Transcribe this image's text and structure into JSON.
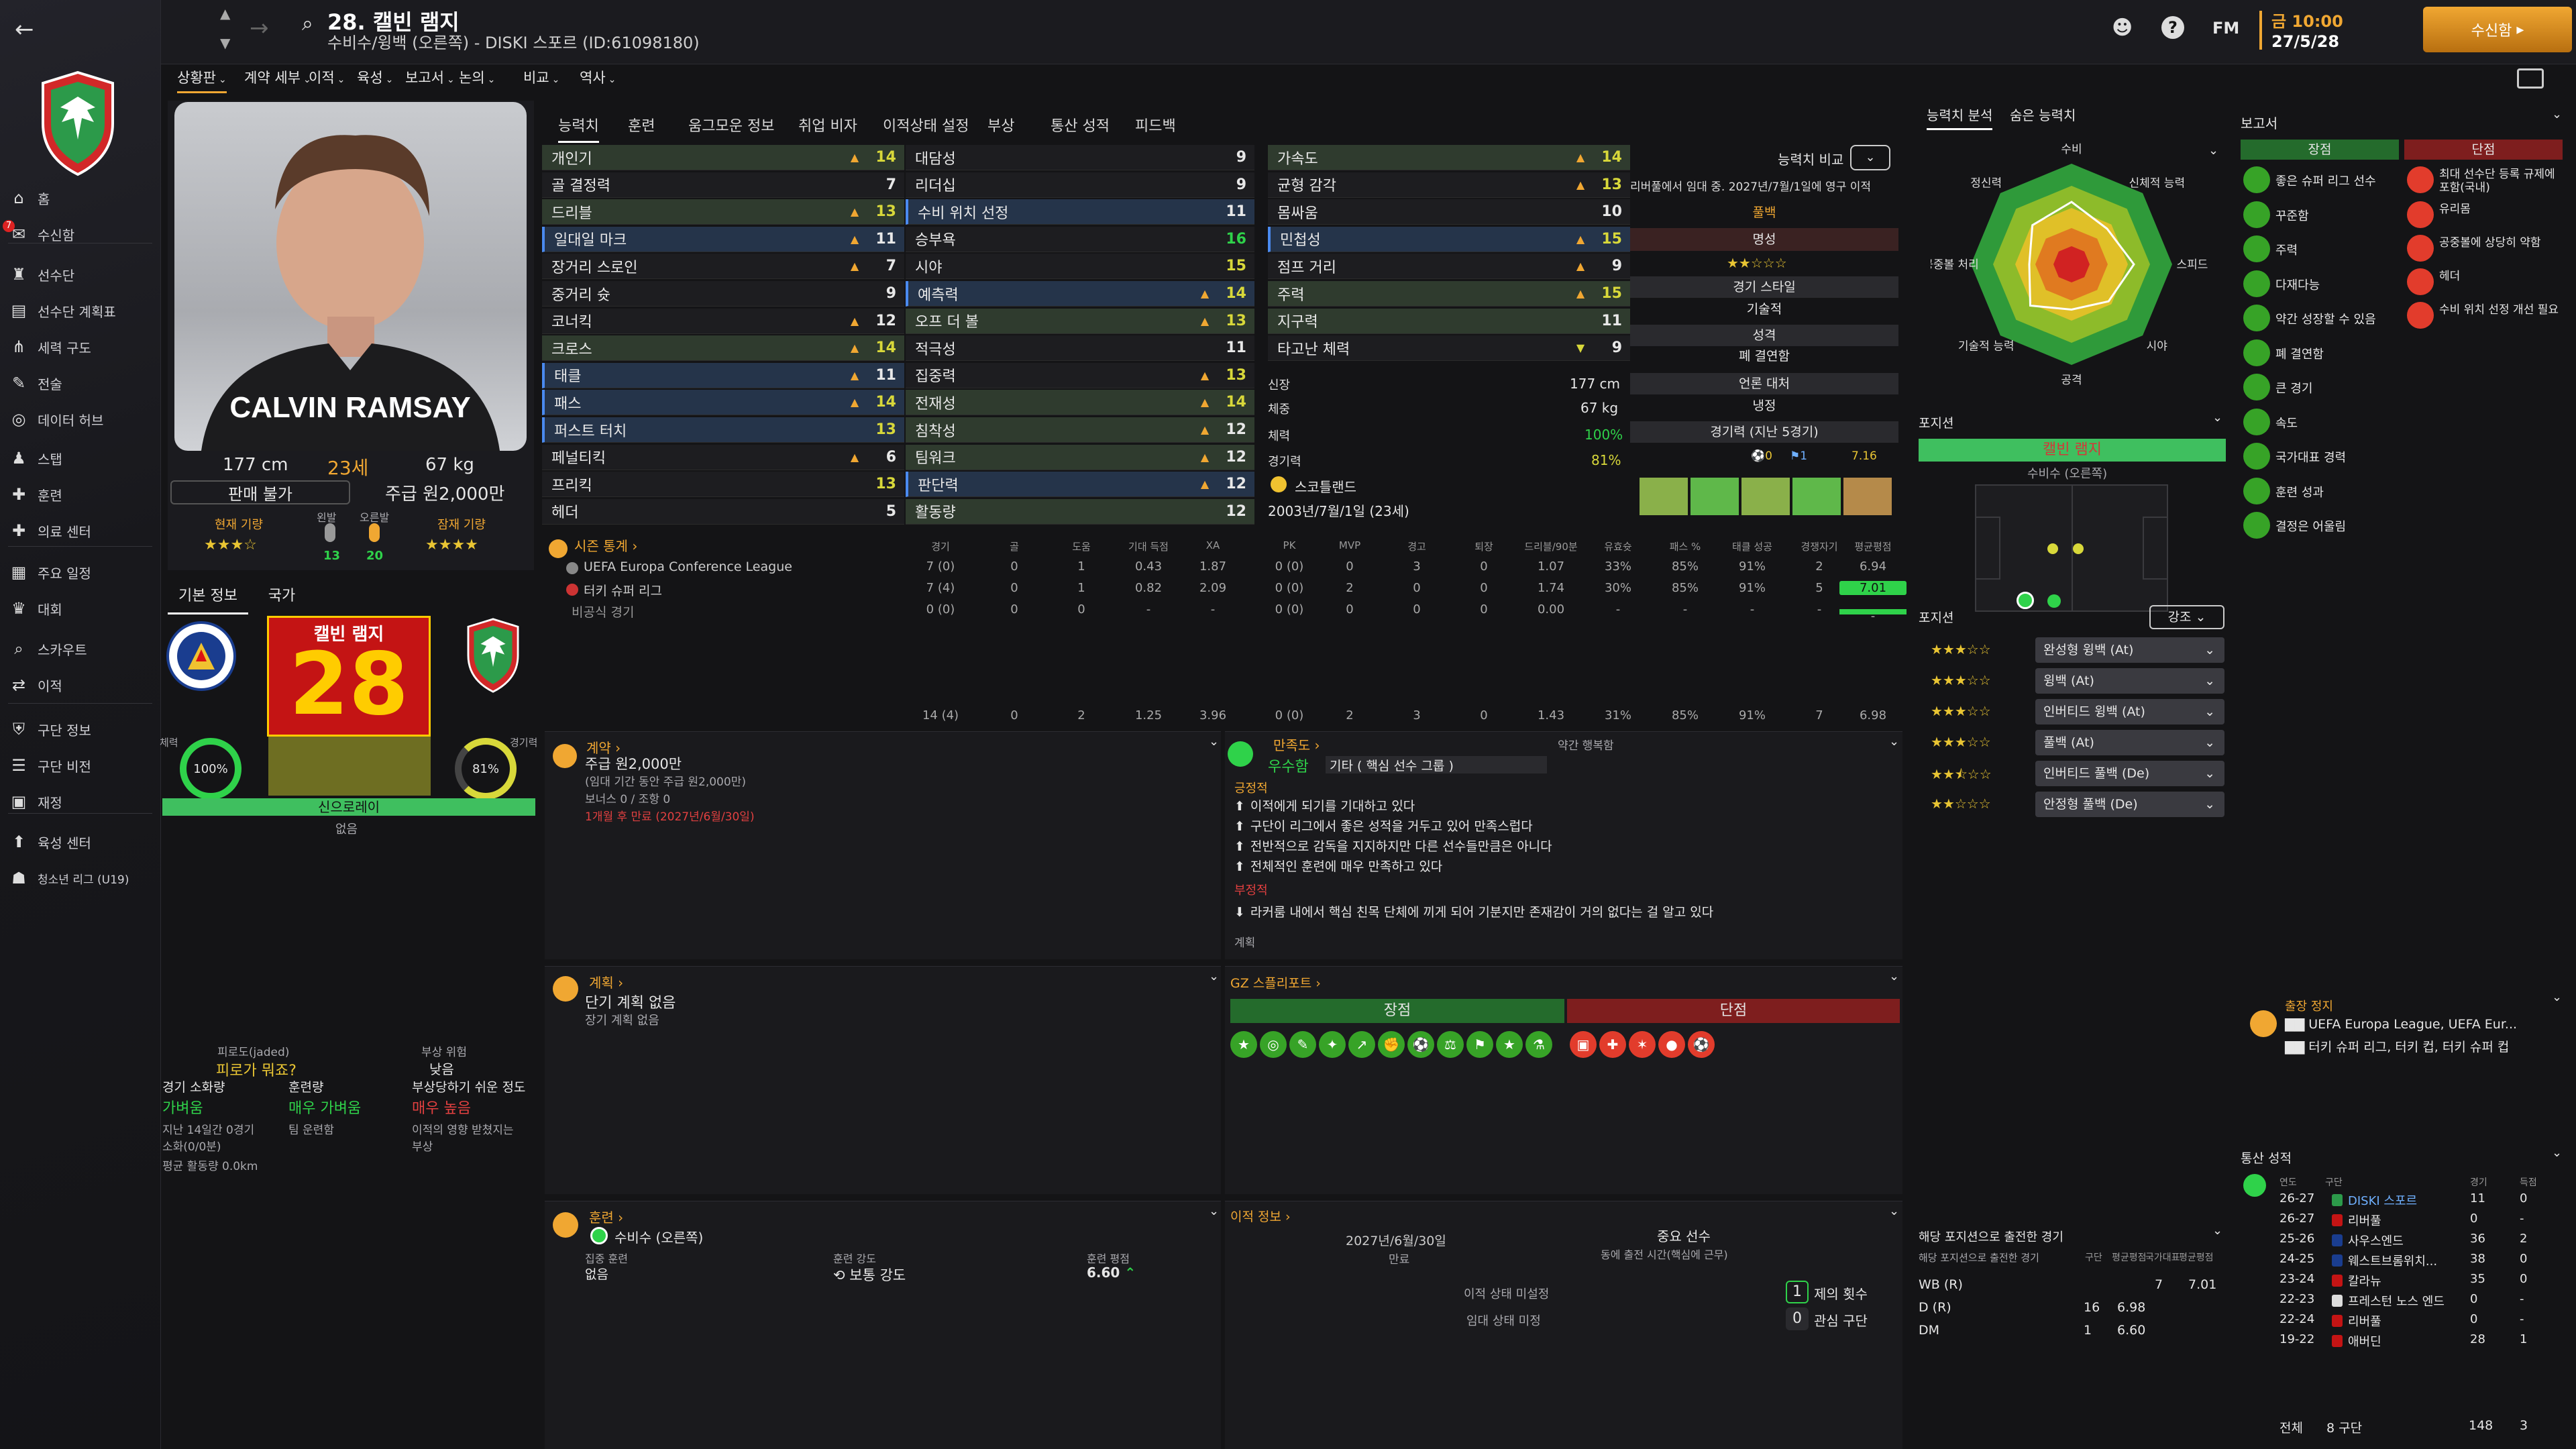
{
  "app": {
    "search_icon": "search-icon",
    "date": "27/5/28",
    "time": "금 10:00",
    "continue_label": "수신함",
    "fm_label": "FM"
  },
  "player": {
    "number_name": "28. 캘빈 램지",
    "subtitle": "수비수/윙백 (오른쪽) - DISKI 스포르 (ID:61098180)",
    "height": "177 cm",
    "age": "23세",
    "weight": "67 kg",
    "transfer_status": "판매 불가",
    "wage": "주급 원2,000만",
    "current_ability_label": "현재 기량",
    "potential_label": "잠재 기량",
    "left_foot_label": "왼발",
    "right_foot_label": "오른발",
    "left_foot": "13",
    "right_foot": "20",
    "card_name": "캘빈 램지",
    "card_number": "28",
    "fitness_label": "체력",
    "fitness": "100%",
    "condition_label": "경기력",
    "condition": "81%",
    "playing_time": "신으로레이",
    "playing_time_sub": "없음"
  },
  "nav": {
    "tabs": [
      "상황판",
      "계약 세부",
      "이적",
      "육성",
      "보고서",
      "논의",
      "비교",
      "역사"
    ]
  },
  "sidebar": {
    "items": [
      {
        "label": "홈",
        "icon": "home-icon"
      },
      {
        "label": "수신함",
        "icon": "mail-icon",
        "badge": "7"
      },
      {
        "label": "선수단",
        "icon": "shirt-icon"
      },
      {
        "label": "선수단 계획표",
        "icon": "clipboard-icon"
      },
      {
        "label": "세력 구도",
        "icon": "hierarchy-icon"
      },
      {
        "label": "전술",
        "icon": "tactics-icon"
      },
      {
        "label": "데이터 허브",
        "icon": "data-icon"
      },
      {
        "label": "스탭",
        "icon": "staff-icon"
      },
      {
        "label": "훈련",
        "icon": "training-icon"
      },
      {
        "label": "의료 센터",
        "icon": "medical-icon"
      },
      {
        "label": "주요 일정",
        "icon": "calendar-icon"
      },
      {
        "label": "대회",
        "icon": "trophy-icon"
      },
      {
        "label": "스카우트",
        "icon": "scout-icon"
      },
      {
        "label": "이적",
        "icon": "transfer-icon"
      },
      {
        "label": "구단 정보",
        "icon": "club-icon"
      },
      {
        "label": "구단 비전",
        "icon": "vision-icon"
      },
      {
        "label": "재정",
        "icon": "finance-icon"
      },
      {
        "label": "육성 센터",
        "icon": "youth-icon"
      },
      {
        "label": "청소년 리그 (U19)",
        "icon": "youth-league-icon"
      }
    ]
  },
  "subtabs": [
    "능력치",
    "훈련",
    "움그모운 정보",
    "취업 비자",
    "이적상태 설정",
    "부상",
    "통산 성적",
    "피드백"
  ],
  "attributes": {
    "technical": [
      [
        "개인기",
        "14",
        "g"
      ],
      [
        "골 결정력",
        "7",
        "x"
      ],
      [
        "드리블",
        "13",
        "g"
      ],
      [
        "일대일 마크",
        "11",
        "b"
      ],
      [
        "장거리 스로인",
        "7",
        "x"
      ],
      [
        "중거리 슛",
        "9",
        "x"
      ],
      [
        "코너킥",
        "12",
        "x"
      ],
      [
        "크로스",
        "14",
        "g"
      ],
      [
        "태클",
        "11",
        "b"
      ],
      [
        "패스",
        "14",
        "b"
      ],
      [
        "퍼스트 터치",
        "13",
        "b"
      ],
      [
        "페널티킥",
        "6",
        "x"
      ],
      [
        "프리킥",
        "13",
        "x"
      ],
      [
        "헤더",
        "5",
        "x"
      ]
    ],
    "mental": [
      [
        "대담성",
        "9",
        "x"
      ],
      [
        "리더십",
        "9",
        "x"
      ],
      [
        "수비 위치 선정",
        "11",
        "b"
      ],
      [
        "승부욕",
        "16",
        "x"
      ],
      [
        "시야",
        "15",
        "x"
      ],
      [
        "예측력",
        "14",
        "b"
      ],
      [
        "오프 더 볼",
        "13",
        "g"
      ],
      [
        "적극성",
        "11",
        "x"
      ],
      [
        "집중력",
        "13",
        "x"
      ],
      [
        "전재성",
        "14",
        "g"
      ],
      [
        "침착성",
        "12",
        "g"
      ],
      [
        "팀워크",
        "12",
        "g"
      ],
      [
        "판단력",
        "12",
        "b"
      ],
      [
        "활동량",
        "12",
        "g"
      ]
    ],
    "physical": [
      [
        "가속도",
        "14",
        "g"
      ],
      [
        "균형 감각",
        "13",
        "x"
      ],
      [
        "몸싸움",
        "10",
        "x"
      ],
      [
        "민첩성",
        "15",
        "b"
      ],
      [
        "점프 거리",
        "9",
        "x"
      ],
      [
        "주력",
        "15",
        "g"
      ],
      [
        "지구력",
        "11",
        "g"
      ],
      [
        "타고난 체력",
        "9",
        "x"
      ]
    ]
  },
  "physinfo": {
    "height_label": "신장",
    "height": "177 cm",
    "weight_label": "체중",
    "weight": "67 kg",
    "fitness_label": "체력",
    "fitness": "100%",
    "condition_label": "경기력",
    "condition": "81%",
    "nation": "스코틀랜드",
    "dob": "2003년/7월/1일 (23세)"
  },
  "compare": {
    "label": "능력치 비교",
    "loan": "리버풀에서 임대 중. 2027년/7월/1일에 영구 이적",
    "role": "풀백",
    "reputation_label": "명성",
    "style_label": "경기 스타일",
    "style": "기술적",
    "personality_label": "성격",
    "personality": "폐 결연함",
    "media_label": "언론 대처",
    "media": "냉정",
    "form_label": "경기력 (지난 5경기)",
    "form_stats": [
      "0",
      "1",
      "7.16"
    ],
    "form_bars": [
      0.85,
      0.95,
      0.8,
      0.95,
      0.7
    ]
  },
  "season": {
    "header": "시즌 통계",
    "columns": [
      "경기",
      "골",
      "도움",
      "기대 득점",
      "XA",
      "PK",
      "MVP",
      "경고",
      "퇴장",
      "드리블/90분",
      "유효슛",
      "패스 %",
      "태클 성공",
      "경쟁자기",
      "평균평점"
    ],
    "rows": [
      {
        "comp": "UEFA Europa Conference League",
        "vals": [
          "7 (0)",
          "0",
          "1",
          "0.43",
          "1.87",
          "0 (0)",
          "0",
          "3",
          "0",
          "1.07",
          "33%",
          "85%",
          "91%",
          "2",
          "6.94"
        ]
      },
      {
        "comp": "터키 슈퍼 리그",
        "vals": [
          "7 (4)",
          "0",
          "1",
          "0.82",
          "2.09",
          "0 (0)",
          "2",
          "0",
          "0",
          "1.74",
          "30%",
          "85%",
          "91%",
          "5",
          "7.01"
        ]
      },
      {
        "comp": "비공식 경기",
        "vals": [
          "0 (0)",
          "0",
          "0",
          "-",
          "-",
          "0 (0)",
          "0",
          "0",
          "0",
          "0.00",
          "-",
          "-",
          "-",
          "-",
          "-"
        ]
      }
    ],
    "total": [
      "14 (4)",
      "0",
      "2",
      "1.25",
      "3.96",
      "0 (0)",
      "2",
      "3",
      "0",
      "1.43",
      "31%",
      "85%",
      "91%",
      "7",
      "6.98"
    ]
  },
  "contract": {
    "header": "계약",
    "wage": "주급 원2,000만",
    "note": "(임대 기간 동안 주급 원2,000만)",
    "bonus": "보너스 0 / 조항 0",
    "expiry": "1개월 후 만료 (2027년/6월/30일)"
  },
  "happiness": {
    "header": "만족도",
    "level": "약간 행복함",
    "status": "우수함",
    "role": "기타 ( 핵심 선수 그룹 )",
    "positive_label": "긍정적",
    "positives": [
      "이적에게 되기를 기대하고 있다",
      "구단이 리그에서 좋은 성적을 거두고 있어 만족스럽다",
      "전반적으로 감독을 지지하지만 다른 선수들만큼은 아니다",
      "전체적인 훈련에 매우 만족하고 있다"
    ],
    "negative_label": "부정적",
    "negatives": [
      "라커룸 내에서 핵심 친목 단체에 끼게 되어 기분지만 존재감이 거의 없다는 걸 알고 있다"
    ],
    "plans_label": "계획"
  },
  "plans": {
    "header": "계획",
    "none": "단기 계획 없음",
    "long": "장기 계획 없음"
  },
  "scouting": {
    "header": "GZ 스플리포트",
    "strengths_label": "장점",
    "weaknesses_label": "단점"
  },
  "training": {
    "header": "훈련",
    "position": "수비수 (오른쪽)",
    "focus_label": "집중 훈련",
    "focus": "없음",
    "intensity_label": "훈련 강도",
    "intensity": "보통 강도",
    "rating_label": "훈련 평점",
    "rating": "6.60"
  },
  "transfer_info": {
    "header": "이적 정보",
    "expiry": "2027년/6월/30일",
    "expiry_label": "만료",
    "role": "중요 선수",
    "role_note": "동에 출전 시간(핵심에 근무)",
    "status1": "이적 상태 미설정",
    "status2": "임대 상태 미정",
    "bids": "1",
    "bids_label": "제의 횟수",
    "interested": "0",
    "interested_label": "관심 구단"
  },
  "injury": {
    "fatigue_label": "피로도(jaded)",
    "fatigue": "피로가 뭐죠?",
    "risk_label": "부상 위험",
    "risk": "낮음",
    "load_label": "경기 소화량",
    "load": "가벼움",
    "training_load_label": "훈련량",
    "training_load": "매우 가벼움",
    "injury_prone_label": "부상당하기 쉬운 정도",
    "injury_prone": "매우 높음",
    "notes": [
      "지난 14일간 0경기 소화(0/0분)",
      "팀 운련함",
      "이적의 영향 받쳤지는 부상"
    ],
    "avg_distance": "평균 활동량 0.0km"
  },
  "tabsleft": {
    "basic": "기본 정보",
    "nation": "국가"
  },
  "radar": {
    "tab1": "능력치 분석",
    "tab2": "숨은 능력치",
    "labels": [
      "수비",
      "신체적 능력",
      "스피드",
      "시야",
      "공격",
      "기술적 능력",
      "공중볼 처리",
      "정신력"
    ]
  },
  "positions": {
    "header": "포지션",
    "player": "캘빈 램지",
    "sub": "수비수 (오른쪽)",
    "roles_header": "포지션",
    "roles_select": "강조",
    "roles": [
      {
        "name": "완성형 윙백 (At)",
        "stars": 3
      },
      {
        "name": "윙백 (At)",
        "stars": 3
      },
      {
        "name": "인버티드 윙백 (At)",
        "stars": 3
      },
      {
        "name": "풀백 (At)",
        "stars": 3
      },
      {
        "name": "인버티드 풀백 (De)",
        "stars": 2.5
      },
      {
        "name": "안정형 풀백 (De)",
        "stars": 2
      }
    ]
  },
  "played": {
    "header": "해당 포지션으로 출전한 경기",
    "subheader": "해당 포지션으로 출전한 경기",
    "cols": [
      "구단",
      "평균평점",
      "국가대표",
      "평균평점"
    ],
    "rows": [
      [
        "WB (R)",
        "",
        "",
        "7",
        "7.01"
      ],
      [
        "D (R)",
        "16",
        "6.98",
        "",
        ""
      ],
      [
        "DM",
        "1",
        "6.60",
        "",
        ""
      ]
    ]
  },
  "report": {
    "header": "보고서",
    "pros_label": "장점",
    "cons_label": "단점",
    "pros": [
      "좋은 슈퍼 리그 선수",
      "꾸준함",
      "주력",
      "다재다능",
      "약간 성장할 수 있음",
      "폐 결연함",
      "큰 경기",
      "속도",
      "국가대표 경력",
      "훈련 성과",
      "결정은 어울림"
    ],
    "cons": [
      "최대 선수단 등록 규제에 포함(국내)",
      "유리몸",
      "공중볼에 상당히 약함",
      "헤더",
      "수비 위치 선정 개선 필요"
    ],
    "ban_header": "출장 정지",
    "ban": [
      "UEFA Europa League, UEFA Eur...",
      "터키 슈퍼 리그, 터키 컵, 터키 슈퍼 컵"
    ]
  },
  "career": {
    "header": "통산 성적",
    "cols": [
      "연도",
      "구단",
      "경기",
      "득점"
    ],
    "rows": [
      [
        "26-27",
        "DISKI 스포르",
        "11",
        "0"
      ],
      [
        "26-27",
        "리버풀",
        "0",
        "-"
      ],
      [
        "25-26",
        "사우스엔드",
        "36",
        "2"
      ],
      [
        "24-25",
        "웨스트브롬위치...",
        "38",
        "0"
      ],
      [
        "23-24",
        "칼라뉴",
        "35",
        "0"
      ],
      [
        "22-23",
        "프레스턴 노스 엔드",
        "0",
        "-"
      ],
      [
        "22-24",
        "리버풀",
        "0",
        "-"
      ],
      [
        "19-22",
        "애버딘",
        "28",
        "1"
      ]
    ],
    "total_label": "전체",
    "total_clubs": "8 구단",
    "total_apps": "148",
    "total_goals": "3"
  },
  "colors": {
    "accent": "#f0a732",
    "green": "#2fd24a",
    "red_card": "#c62020",
    "pos_bar": "#3fbf5f"
  }
}
